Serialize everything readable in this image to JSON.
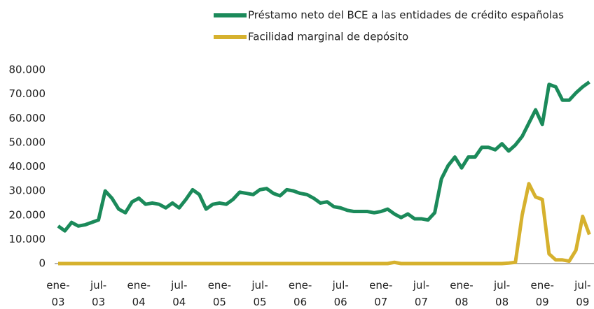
{
  "chart_data": {
    "type": "line",
    "categories": [
      "ene-03",
      null,
      null,
      null,
      null,
      null,
      "jul-03",
      null,
      null,
      null,
      null,
      null,
      "ene-04",
      null,
      null,
      null,
      null,
      null,
      "jul-04",
      null,
      null,
      null,
      null,
      null,
      "ene-05",
      null,
      null,
      null,
      null,
      null,
      "jul-05",
      null,
      null,
      null,
      null,
      null,
      "ene-06",
      null,
      null,
      null,
      null,
      null,
      "jul-06",
      null,
      null,
      null,
      null,
      null,
      "ene-07",
      null,
      null,
      null,
      null,
      null,
      "jul-07",
      null,
      null,
      null,
      null,
      null,
      "ene-08",
      null,
      null,
      null,
      null,
      null,
      "jul-08",
      null,
      null,
      null,
      null,
      null,
      "ene-09",
      null,
      null,
      null,
      null,
      null,
      "jul-09",
      null
    ],
    "series": [
      {
        "name": "Préstamo neto del BCE a las entidades de crédito españolas",
        "color": "#1b8a5a",
        "values": [
          15500,
          13500,
          17000,
          15500,
          16000,
          17000,
          18000,
          30000,
          27000,
          22500,
          21000,
          25500,
          27000,
          24500,
          25000,
          24500,
          23000,
          25000,
          23000,
          26500,
          30500,
          28500,
          22500,
          24500,
          25000,
          24500,
          26500,
          29500,
          29000,
          28500,
          30500,
          31000,
          29000,
          28000,
          30500,
          30000,
          29000,
          28500,
          27000,
          25000,
          25500,
          23500,
          23000,
          22000,
          21500,
          21500,
          21500,
          21000,
          21500,
          22500,
          20500,
          19000,
          20500,
          18500,
          18500,
          18000,
          21000,
          35000,
          40500,
          44000,
          39500,
          44000,
          44000,
          48000,
          48000,
          47000,
          49500,
          46500,
          49000,
          52500,
          58000,
          63500,
          57500,
          74000,
          73000,
          67500,
          67500,
          70500,
          73000,
          75000
        ]
      },
      {
        "name": "Facilidad marginal de depósito",
        "color": "#d6b12e",
        "values": [
          0,
          0,
          0,
          0,
          0,
          0,
          0,
          0,
          0,
          0,
          0,
          0,
          0,
          0,
          0,
          0,
          0,
          0,
          0,
          0,
          0,
          0,
          0,
          0,
          0,
          0,
          0,
          0,
          0,
          0,
          0,
          0,
          0,
          0,
          0,
          0,
          0,
          0,
          0,
          0,
          0,
          0,
          0,
          0,
          0,
          0,
          0,
          0,
          0,
          0,
          500,
          0,
          0,
          0,
          0,
          0,
          0,
          0,
          0,
          0,
          0,
          0,
          0,
          0,
          0,
          0,
          0,
          200,
          500,
          20000,
          33000,
          27500,
          26500,
          4000,
          1500,
          1500,
          1000,
          5500,
          19500,
          12000
        ]
      }
    ],
    "ylim": [
      0,
      80000
    ],
    "yticks": [
      0,
      {
        "value": 10000,
        "label": "10.000"
      },
      {
        "value": 20000,
        "label": "20.000"
      },
      {
        "value": 30000,
        "label": "30.000"
      },
      {
        "value": 40000,
        "label": "40.000"
      },
      {
        "value": 50000,
        "label": "50.000"
      },
      {
        "value": 60000,
        "label": "60.000"
      },
      {
        "value": 70000,
        "label": "70.000"
      },
      {
        "value": 80000,
        "label": "80.000"
      }
    ],
    "grid": false
  }
}
